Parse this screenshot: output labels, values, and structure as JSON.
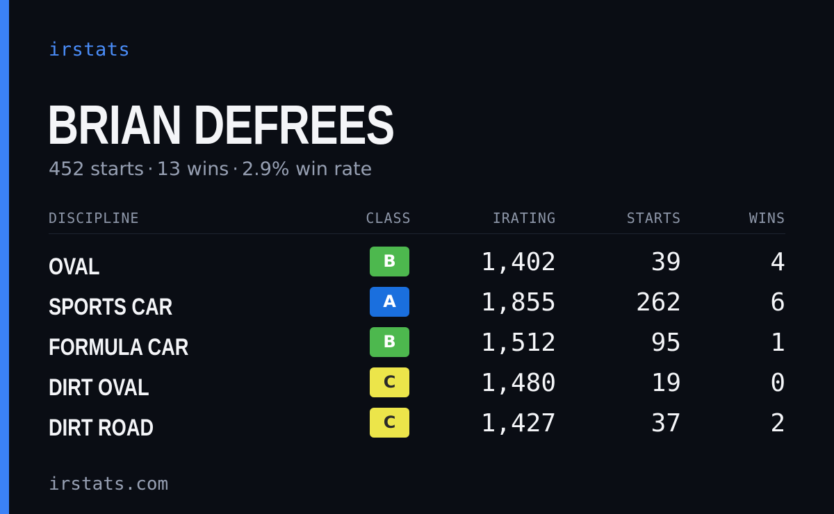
{
  "brand": "irstats",
  "player": {
    "name": "BRIAN DEFREES",
    "starts_text": "452 starts",
    "wins_text": "13 wins",
    "win_rate_text": "2.9% win rate",
    "separator": "·"
  },
  "table": {
    "headers": {
      "discipline": "DISCIPLINE",
      "class": "CLASS",
      "irating": "IRATING",
      "starts": "STARTS",
      "wins": "WINS"
    },
    "rows": [
      {
        "discipline": "OVAL",
        "class": "B",
        "irating": "1,402",
        "starts": "39",
        "wins": "4"
      },
      {
        "discipline": "SPORTS CAR",
        "class": "A",
        "irating": "1,855",
        "starts": "262",
        "wins": "6"
      },
      {
        "discipline": "FORMULA CAR",
        "class": "B",
        "irating": "1,512",
        "starts": "95",
        "wins": "1"
      },
      {
        "discipline": "DIRT OVAL",
        "class": "C",
        "irating": "1,480",
        "starts": "19",
        "wins": "0"
      },
      {
        "discipline": "DIRT ROAD",
        "class": "C",
        "irating": "1,427",
        "starts": "37",
        "wins": "2"
      }
    ]
  },
  "class_colors": {
    "A": "#1a6fde",
    "B": "#4db84e",
    "C": "#ece54a"
  },
  "accent_color": "#3b82f6",
  "footer": "irstats.com"
}
